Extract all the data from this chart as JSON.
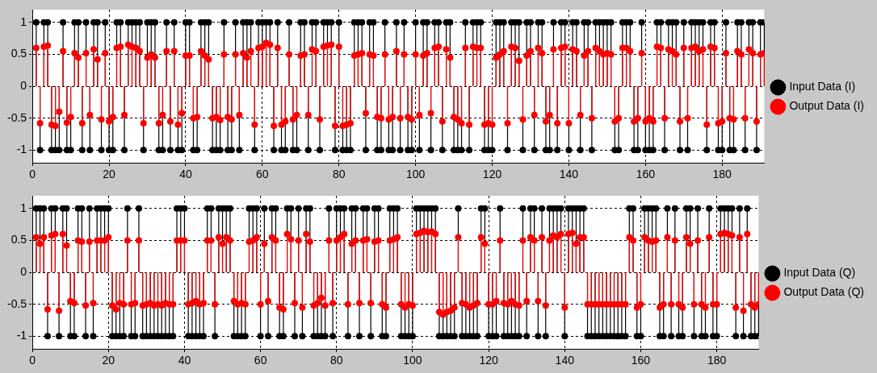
{
  "chart_data": [
    {
      "type": "lollipop",
      "x": [
        1,
        2,
        3,
        4,
        5,
        6,
        7,
        8,
        9,
        10,
        11,
        12,
        13,
        14,
        15,
        16,
        17,
        18,
        19,
        20,
        21,
        22,
        23,
        24,
        25,
        26,
        27,
        28,
        29,
        30,
        31,
        32,
        33,
        34,
        35,
        36,
        37,
        38,
        39,
        40,
        41,
        42,
        43,
        44,
        45,
        46,
        47,
        48,
        49,
        50,
        51,
        52,
        53,
        54,
        55,
        56,
        57,
        58,
        59,
        60,
        61,
        62,
        63,
        64,
        65,
        66,
        67,
        68,
        69,
        70,
        71,
        72,
        73,
        74,
        75,
        76,
        77,
        78,
        79,
        80,
        81,
        82,
        83,
        84,
        85,
        86,
        87,
        88,
        89,
        90,
        91,
        92,
        93,
        94,
        95,
        96,
        97,
        98,
        99,
        100,
        101,
        102,
        103,
        104,
        105,
        106,
        107,
        108,
        109,
        110,
        111,
        112,
        113,
        114,
        115,
        116,
        117,
        118,
        119,
        120,
        121,
        122,
        123,
        124,
        125,
        126,
        127,
        128,
        129,
        130,
        131,
        132,
        133,
        134,
        135,
        136,
        137,
        138,
        139,
        140,
        141,
        142,
        143,
        144,
        145,
        146,
        147,
        148,
        149,
        150,
        151,
        152,
        153,
        154,
        155,
        156,
        157,
        158,
        159,
        160,
        161,
        162,
        163,
        164,
        165,
        166,
        167,
        168,
        169,
        170,
        171,
        172,
        173,
        174,
        175,
        176,
        177,
        178,
        179,
        180,
        181,
        182,
        183,
        184,
        185,
        186,
        187,
        188,
        189,
        190,
        191
      ],
      "xlim": [
        0,
        191
      ],
      "xticks": [
        0,
        20,
        40,
        60,
        80,
        100,
        120,
        140,
        160,
        180
      ],
      "ylim": [
        -1.2,
        1.2
      ],
      "yticks": [
        -1,
        -0.5,
        0,
        0.5,
        1
      ],
      "grid": true,
      "legend": "right",
      "marker": "circle",
      "series": [
        {
          "name": "Input Data (I)",
          "color": "#000000",
          "values": [
            1,
            -1,
            1,
            1,
            -1,
            -1,
            -1,
            1,
            -1,
            -1,
            1,
            1,
            -1,
            1,
            -1,
            1,
            1,
            -1,
            1,
            -1,
            -1,
            1,
            1,
            -1,
            1,
            1,
            1,
            1,
            -1,
            1,
            1,
            1,
            -1,
            -1,
            1,
            -1,
            1,
            -1,
            -1,
            1,
            1,
            -1,
            -1,
            1,
            1,
            1,
            -1,
            -1,
            -1,
            1,
            -1,
            -1,
            1,
            -1,
            1,
            1,
            1,
            -1,
            1,
            1,
            1,
            1,
            -1,
            1,
            -1,
            -1,
            1,
            -1,
            -1,
            1,
            1,
            -1,
            1,
            1,
            -1,
            1,
            1,
            1,
            -1,
            1,
            -1,
            -1,
            -1,
            1,
            1,
            1,
            -1,
            1,
            1,
            -1,
            -1,
            1,
            -1,
            -1,
            1,
            -1,
            1,
            -1,
            -1,
            1,
            -1,
            1,
            1,
            -1,
            1,
            1,
            -1,
            1,
            1,
            -1,
            -1,
            -1,
            1,
            -1,
            1,
            1,
            1,
            -1,
            -1,
            -1,
            1,
            1,
            1,
            -1,
            1,
            1,
            1,
            -1,
            1,
            1,
            -1,
            1,
            1,
            -1,
            -1,
            1,
            -1,
            1,
            1,
            -1,
            1,
            1,
            -1,
            1,
            1,
            -1,
            1,
            1,
            1,
            1,
            1,
            -1,
            -1,
            1,
            1,
            1,
            -1,
            -1,
            1,
            -1,
            -1,
            -1,
            1,
            1,
            -1,
            1,
            1,
            1,
            -1,
            1,
            -1,
            1,
            1,
            1,
            1,
            -1,
            1,
            1,
            -1,
            -1,
            1,
            -1,
            -1,
            1,
            1,
            -1,
            1,
            1,
            -1,
            1,
            1
          ]
        },
        {
          "name": "Output Data (I)",
          "color": "#ff0000",
          "values": [
            0.6,
            -0.58,
            0.62,
            0.64,
            -0.6,
            -0.62,
            -0.4,
            0.55,
            -0.57,
            -0.48,
            0.52,
            0.45,
            -0.58,
            0.52,
            -0.45,
            0.58,
            0.42,
            -0.52,
            0.52,
            -0.55,
            -0.48,
            0.6,
            0.62,
            -0.45,
            0.65,
            0.62,
            0.6,
            0.55,
            -0.58,
            0.45,
            0.5,
            0.45,
            -0.58,
            -0.45,
            0.55,
            -0.55,
            0.55,
            -0.6,
            -0.42,
            0.48,
            0.48,
            -0.5,
            -0.48,
            0.55,
            0.48,
            0.42,
            -0.5,
            -0.48,
            -0.53,
            0.5,
            -0.48,
            -0.52,
            0.5,
            -0.45,
            0.52,
            0.45,
            0.55,
            -0.6,
            0.6,
            0.62,
            0.68,
            0.65,
            -0.62,
            0.6,
            -0.6,
            -0.55,
            0.5,
            -0.52,
            -0.45,
            0.48,
            0.5,
            -0.45,
            0.58,
            0.55,
            -0.52,
            0.62,
            0.64,
            0.65,
            -0.62,
            0.62,
            -0.62,
            -0.6,
            -0.58,
            0.48,
            0.5,
            0.52,
            -0.42,
            0.5,
            0.48,
            -0.48,
            -0.5,
            0.5,
            -0.52,
            -0.48,
            0.55,
            -0.5,
            0.5,
            -0.48,
            -0.52,
            0.5,
            -0.45,
            0.48,
            0.52,
            -0.42,
            0.6,
            0.62,
            -0.55,
            0.58,
            0.45,
            -0.48,
            -0.52,
            -0.58,
            0.6,
            -0.6,
            0.62,
            0.6,
            0.6,
            -0.6,
            -0.58,
            -0.6,
            0.45,
            0.5,
            0.55,
            -0.58,
            0.62,
            0.6,
            0.4,
            -0.52,
            0.48,
            0.55,
            -0.45,
            0.6,
            0.52,
            -0.55,
            -0.45,
            0.58,
            -0.58,
            0.6,
            0.62,
            -0.58,
            0.58,
            0.55,
            -0.45,
            0.48,
            0.55,
            -0.5,
            0.6,
            0.55,
            0.5,
            0.52,
            0.5,
            -0.55,
            -0.5,
            0.6,
            0.6,
            0.55,
            -0.55,
            -0.5,
            0.52,
            -0.55,
            -0.5,
            -0.55,
            0.62,
            0.6,
            -0.5,
            0.58,
            0.55,
            0.5,
            -0.55,
            0.6,
            -0.5,
            0.6,
            0.62,
            0.55,
            0.58,
            -0.6,
            0.62,
            0.6,
            -0.58,
            -0.55,
            0.52,
            -0.5,
            -0.52,
            0.55,
            0.5,
            -0.5,
            0.58,
            0.52,
            -0.55,
            0.5,
            0.52
          ]
        }
      ]
    },
    {
      "type": "lollipop",
      "x": [
        1,
        2,
        3,
        4,
        5,
        6,
        7,
        8,
        9,
        10,
        11,
        12,
        13,
        14,
        15,
        16,
        17,
        18,
        19,
        20,
        21,
        22,
        23,
        24,
        25,
        26,
        27,
        28,
        29,
        30,
        31,
        32,
        33,
        34,
        35,
        36,
        37,
        38,
        39,
        40,
        41,
        42,
        43,
        44,
        45,
        46,
        47,
        48,
        49,
        50,
        51,
        52,
        53,
        54,
        55,
        56,
        57,
        58,
        59,
        60,
        61,
        62,
        63,
        64,
        65,
        66,
        67,
        68,
        69,
        70,
        71,
        72,
        73,
        74,
        75,
        76,
        77,
        78,
        79,
        80,
        81,
        82,
        83,
        84,
        85,
        86,
        87,
        88,
        89,
        90,
        91,
        92,
        93,
        94,
        95,
        96,
        97,
        98,
        99,
        100,
        101,
        102,
        103,
        104,
        105,
        106,
        107,
        108,
        109,
        110,
        111,
        112,
        113,
        114,
        115,
        116,
        117,
        118,
        119,
        120,
        121,
        122,
        123,
        124,
        125,
        126,
        127,
        128,
        129,
        130,
        131,
        132,
        133,
        134,
        135,
        136,
        137,
        138,
        139,
        140,
        141,
        142,
        143,
        144,
        145,
        146,
        147,
        148,
        149,
        150,
        151,
        152,
        153,
        154,
        155,
        156,
        157,
        158,
        159,
        160,
        161,
        162,
        163,
        164,
        165,
        166,
        167,
        168,
        169,
        170,
        171,
        172,
        173,
        174,
        175,
        176,
        177,
        178,
        179,
        180,
        181,
        182,
        183,
        184,
        185,
        186,
        187,
        188,
        189,
        190,
        191
      ],
      "xlim": [
        0,
        191
      ],
      "xticks": [
        0,
        20,
        40,
        60,
        80,
        100,
        120,
        140,
        160,
        180
      ],
      "ylim": [
        -1.2,
        1.2
      ],
      "yticks": [
        -1,
        -0.5,
        0,
        0.5,
        1
      ],
      "grid": true,
      "legend": "right",
      "marker": "circle",
      "series": [
        {
          "name": "Input Data (Q)",
          "color": "#000000",
          "values": [
            1,
            1,
            1,
            -1,
            1,
            1,
            -1,
            1,
            1,
            -1,
            -1,
            1,
            1,
            -1,
            1,
            -1,
            1,
            1,
            1,
            1,
            -1,
            -1,
            -1,
            -1,
            1,
            -1,
            -1,
            1,
            -1,
            -1,
            -1,
            -1,
            -1,
            -1,
            -1,
            -1,
            -1,
            1,
            1,
            1,
            -1,
            -1,
            -1,
            -1,
            -1,
            1,
            1,
            -1,
            1,
            1,
            1,
            1,
            -1,
            -1,
            -1,
            -1,
            1,
            1,
            1,
            -1,
            1,
            -1,
            1,
            1,
            -1,
            -1,
            1,
            1,
            -1,
            1,
            -1,
            1,
            1,
            -1,
            -1,
            -1,
            -1,
            1,
            -1,
            1,
            1,
            1,
            -1,
            1,
            1,
            -1,
            1,
            1,
            -1,
            1,
            1,
            -1,
            -1,
            1,
            1,
            1,
            -1,
            -1,
            -1,
            -1,
            1,
            1,
            1,
            1,
            1,
            1,
            -1,
            -1,
            -1,
            -1,
            -1,
            1,
            -1,
            -1,
            -1,
            -1,
            -1,
            1,
            1,
            -1,
            -1,
            -1,
            1,
            -1,
            -1,
            -1,
            -1,
            -1,
            1,
            -1,
            1,
            1,
            -1,
            1,
            -1,
            1,
            1,
            1,
            1,
            -1,
            1,
            1,
            1,
            1,
            1,
            -1,
            -1,
            -1,
            -1,
            -1,
            -1,
            -1,
            -1,
            -1,
            -1,
            -1,
            1,
            1,
            -1,
            -1,
            1,
            1,
            1,
            1,
            -1,
            -1,
            1,
            -1,
            1,
            -1,
            -1,
            1,
            1,
            -1,
            1,
            -1,
            -1,
            1,
            -1,
            -1,
            1,
            1,
            1,
            1,
            -1,
            1,
            -1,
            1,
            -1,
            -1,
            -1
          ]
        },
        {
          "name": "Output Data (Q)",
          "color": "#ff0000",
          "values": [
            0.55,
            0.45,
            0.55,
            -0.58,
            0.58,
            0.6,
            -0.6,
            0.6,
            0.42,
            -0.45,
            -0.48,
            0.5,
            0.48,
            -0.52,
            0.48,
            -0.48,
            0.5,
            0.5,
            0.5,
            0.55,
            -0.52,
            -0.58,
            -0.48,
            -0.5,
            0.5,
            -0.5,
            -0.48,
            0.5,
            -0.52,
            -0.5,
            -0.48,
            -0.52,
            -0.5,
            -0.52,
            -0.48,
            -0.5,
            -0.5,
            0.5,
            0.5,
            0.5,
            -0.5,
            -0.48,
            -0.45,
            -0.5,
            -0.48,
            0.5,
            0.5,
            -0.5,
            0.55,
            0.45,
            0.55,
            0.5,
            -0.45,
            -0.5,
            -0.48,
            -0.5,
            0.48,
            0.5,
            0.55,
            -0.5,
            0.45,
            -0.45,
            0.55,
            0.5,
            -0.55,
            -0.58,
            0.6,
            0.52,
            -0.48,
            0.5,
            -0.55,
            0.6,
            0.48,
            -0.52,
            -0.48,
            -0.4,
            -0.52,
            0.5,
            -0.48,
            0.5,
            0.55,
            0.6,
            -0.5,
            0.45,
            0.5,
            -0.48,
            0.5,
            0.52,
            -0.48,
            0.48,
            0.5,
            -0.5,
            -0.55,
            0.5,
            0.52,
            0.55,
            -0.5,
            -0.55,
            -0.5,
            -0.52,
            0.6,
            0.62,
            0.65,
            0.63,
            0.64,
            0.6,
            -0.62,
            -0.66,
            -0.62,
            -0.6,
            -0.55,
            0.55,
            -0.48,
            -0.5,
            -0.55,
            -0.52,
            -0.48,
            0.55,
            0.45,
            -0.5,
            -0.5,
            -0.45,
            0.5,
            -0.48,
            -0.5,
            -0.45,
            -0.5,
            -0.52,
            0.5,
            -0.45,
            0.55,
            0.5,
            -0.45,
            0.55,
            -0.52,
            0.5,
            0.58,
            0.55,
            0.6,
            -0.55,
            0.6,
            0.62,
            0.45,
            0.55,
            0.55,
            -0.5,
            -0.5,
            -0.5,
            -0.5,
            -0.5,
            -0.5,
            -0.5,
            -0.5,
            -0.5,
            -0.5,
            -0.5,
            0.55,
            0.5,
            -0.55,
            -0.5,
            0.55,
            0.5,
            0.48,
            0.5,
            -0.55,
            -0.5,
            0.55,
            -0.5,
            0.5,
            -0.5,
            -0.55,
            0.55,
            0.45,
            -0.5,
            0.5,
            -0.5,
            -0.55,
            0.55,
            -0.5,
            -0.5,
            0.6,
            0.62,
            0.6,
            0.58,
            -0.55,
            0.55,
            -0.6,
            0.6,
            -0.5,
            -0.55,
            -0.5
          ]
        }
      ]
    }
  ]
}
